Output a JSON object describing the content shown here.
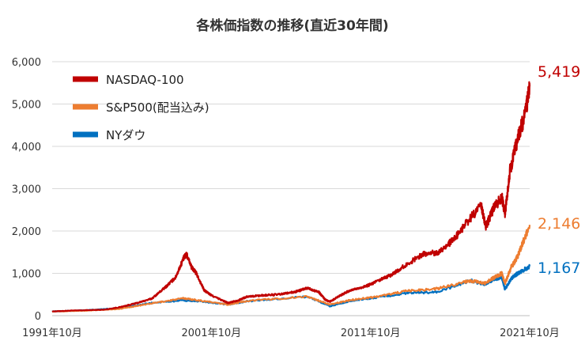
{
  "chart_data": {
    "type": "line",
    "title": "各株価指数の推移(直近30年間)",
    "xlabel": "",
    "ylabel": "",
    "ylim": [
      0,
      6000
    ],
    "yticks": [
      0,
      1000,
      2000,
      3000,
      4000,
      5000,
      6000
    ],
    "ytick_labels": [
      "0",
      "1,000",
      "2,000",
      "3,000",
      "4,000",
      "5,000",
      "6,000"
    ],
    "xlim": [
      1991.75,
      2021.75
    ],
    "xticks": [
      1991.75,
      2001.75,
      2011.75,
      2021.75
    ],
    "xtick_labels": [
      "1991年10月",
      "2001年10月",
      "2011年10月",
      "2021年10月"
    ],
    "grid": true,
    "legend_position": "top-left",
    "series": [
      {
        "name": "NASDAQ-100",
        "color": "#c00000",
        "end_label": "5,419",
        "x": [
          1991.75,
          1993,
          1995,
          1996,
          1997,
          1998,
          1998.8,
          1999.5,
          2000.0,
          2000.2,
          2000.5,
          2000.8,
          2001.3,
          2001.75,
          2002.5,
          2002.8,
          2003.5,
          2004,
          2005,
          2006,
          2007,
          2007.8,
          2008.5,
          2008.9,
          2009.2,
          2009.8,
          2010.5,
          2011.5,
          2012,
          2013,
          2014,
          2015,
          2016,
          2017,
          2018,
          2018.7,
          2019.0,
          2019.5,
          2020.0,
          2020.2,
          2020.5,
          2021.0,
          2021.5,
          2021.75
        ],
        "y": [
          100,
          120,
          140,
          200,
          290,
          400,
          650,
          900,
          1350,
          1450,
          1150,
          1000,
          600,
          480,
          350,
          300,
          370,
          450,
          480,
          500,
          560,
          650,
          560,
          380,
          330,
          470,
          600,
          700,
          780,
          950,
          1200,
          1450,
          1500,
          1800,
          2300,
          2600,
          2100,
          2550,
          2800,
          2400,
          3400,
          4200,
          4800,
          5419
        ]
      },
      {
        "name": "S&P500(配当込み)",
        "color": "#ed7d31",
        "end_label": "2,146",
        "x": [
          1991.75,
          1994,
          1996,
          1998,
          2000.0,
          2001.0,
          2002.8,
          2004,
          2007.8,
          2009.2,
          2010.5,
          2012,
          2014,
          2016,
          2018,
          2018.9,
          2019.5,
          2020.0,
          2020.2,
          2020.6,
          2021.0,
          2021.75
        ],
        "y": [
          100,
          120,
          160,
          290,
          410,
          360,
          260,
          350,
          450,
          260,
          370,
          440,
          580,
          640,
          830,
          760,
          900,
          1000,
          760,
          1150,
          1400,
          2146
        ]
      },
      {
        "name": "NYダウ",
        "color": "#0070c0",
        "end_label": "1,167",
        "x": [
          1991.75,
          1994,
          1996,
          1998,
          2000.0,
          2001.0,
          2002.8,
          2004,
          2007.8,
          2009.2,
          2010.5,
          2012,
          2014,
          2016,
          2018,
          2018.9,
          2019.5,
          2020.0,
          2020.2,
          2020.6,
          2021.0,
          2021.75
        ],
        "y": [
          100,
          130,
          180,
          300,
          360,
          340,
          260,
          340,
          450,
          220,
          350,
          420,
          530,
          560,
          830,
          740,
          850,
          900,
          620,
          880,
          1000,
          1167
        ]
      }
    ]
  }
}
